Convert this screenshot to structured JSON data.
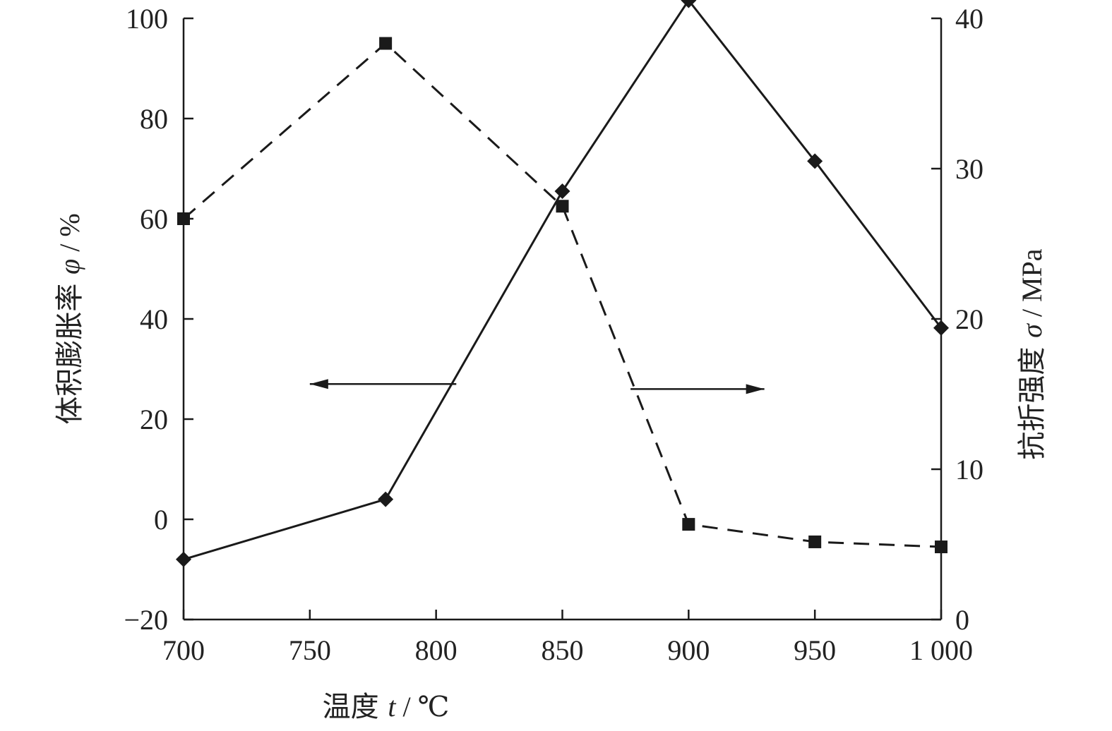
{
  "chart_data": {
    "type": "line",
    "x": [
      700,
      780,
      850,
      900,
      950,
      1000
    ],
    "xlim": [
      700,
      1000
    ],
    "xticks": [
      700,
      750,
      800,
      850,
      900,
      950,
      1000
    ],
    "xtick_labels": [
      "700",
      "750",
      "800",
      "850",
      "900",
      "950",
      "1 000"
    ],
    "xlabel": {
      "text": "温度",
      "symbol": "t",
      "unit": "/ ℃"
    },
    "ylim_left": [
      -20,
      100
    ],
    "yticks_left": [
      -20,
      0,
      20,
      40,
      60,
      80,
      100
    ],
    "ytick_labels_left": [
      "−20",
      "0",
      "20",
      "40",
      "60",
      "80",
      "100"
    ],
    "ylabel_left": {
      "text": "体积膨胀率",
      "symbol": "φ",
      "unit": "/ %"
    },
    "ylim_right": [
      0,
      40
    ],
    "yticks_right": [
      0,
      10,
      20,
      30,
      40
    ],
    "ytick_labels_right": [
      "0",
      "10",
      "20",
      "30",
      "40"
    ],
    "ylabel_right": {
      "text": "抗折强度",
      "symbol": "σ",
      "unit": "/ MPa"
    },
    "series": [
      {
        "axis": "left",
        "style": "dashed",
        "marker": "square",
        "color": "#1a1a1a",
        "values": [
          60,
          95,
          62.5,
          -1,
          -4.5,
          -5.5
        ]
      },
      {
        "axis": "right",
        "style": "solid",
        "marker": "diamond",
        "color": "#1a1a1a",
        "values": [
          4,
          8,
          28.5,
          41.2,
          30.5,
          19.4
        ]
      }
    ],
    "annotations": [
      {
        "type": "arrow",
        "direction": "left",
        "points_to": "left-axis",
        "x_from": 808,
        "x_to": 750,
        "y_left": 27
      },
      {
        "type": "arrow",
        "direction": "right",
        "points_to": "right-axis",
        "x_from": 877,
        "x_to": 930,
        "y_left": 26
      }
    ],
    "grid": false,
    "legend": "none"
  }
}
